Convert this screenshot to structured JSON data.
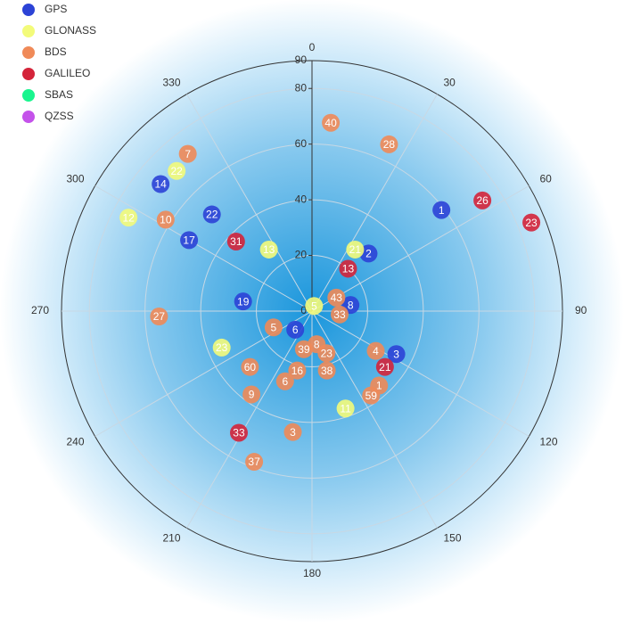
{
  "chart_data": {
    "type": "polar",
    "rlim": [
      0,
      90
    ],
    "rticks": [
      0,
      20,
      40,
      60,
      80,
      90
    ],
    "angle_ticks": [
      0,
      30,
      60,
      90,
      120,
      150,
      180,
      210,
      240,
      270,
      300,
      330
    ],
    "grid": true,
    "legend": "top-left",
    "series": [
      {
        "name": "GPS",
        "color": "#2c43d6",
        "labels": [
          "1",
          "2",
          "8",
          "3",
          "6",
          "19",
          "17",
          "22",
          "14"
        ],
        "angles": [
          52,
          44.5,
          81,
          117,
          222,
          278,
          300,
          314,
          310
        ],
        "values": [
          59,
          29,
          14,
          34,
          9,
          25,
          51,
          50,
          71
        ]
      },
      {
        "name": "GLONASS",
        "color": "#f3fb7a",
        "labels": [
          "22",
          "12",
          "13",
          "21",
          "5",
          "23",
          "11"
        ],
        "angles": [
          316,
          297,
          325,
          35,
          22,
          248,
          161
        ],
        "values": [
          70,
          74,
          27,
          27,
          2,
          35,
          37
        ]
      },
      {
        "name": "BDS",
        "color": "#f08a58",
        "labels": [
          "40",
          "28",
          "7",
          "10",
          "27",
          "43",
          "33",
          "5",
          "8",
          "39",
          "23",
          "4",
          "16",
          "38",
          "6",
          "1",
          "59",
          "60",
          "9",
          "3",
          "37"
        ],
        "angles": [
          5.7,
          24.8,
          321.7,
          302,
          268,
          61,
          97,
          247,
          172,
          192,
          161,
          122,
          194,
          166,
          201,
          138,
          145,
          228,
          216,
          189,
          201
        ],
        "values": [
          68,
          66,
          72,
          62,
          55,
          10,
          10,
          15,
          12,
          14,
          16,
          27,
          22,
          22,
          27,
          36,
          37,
          30,
          37,
          44,
          58
        ]
      },
      {
        "name": "GALILEO",
        "color": "#d4243a",
        "labels": [
          "26",
          "23",
          "31",
          "13",
          "21",
          "33"
        ],
        "angles": [
          57,
          68,
          312.5,
          40.4,
          127.4,
          211
        ],
        "values": [
          73,
          85,
          37,
          20,
          33,
          51
        ]
      },
      {
        "name": "SBAS",
        "color": "#19f58e",
        "labels": [],
        "angles": [],
        "values": []
      },
      {
        "name": "QZSS",
        "color": "#c452ea",
        "labels": [],
        "angles": [],
        "values": []
      }
    ]
  }
}
